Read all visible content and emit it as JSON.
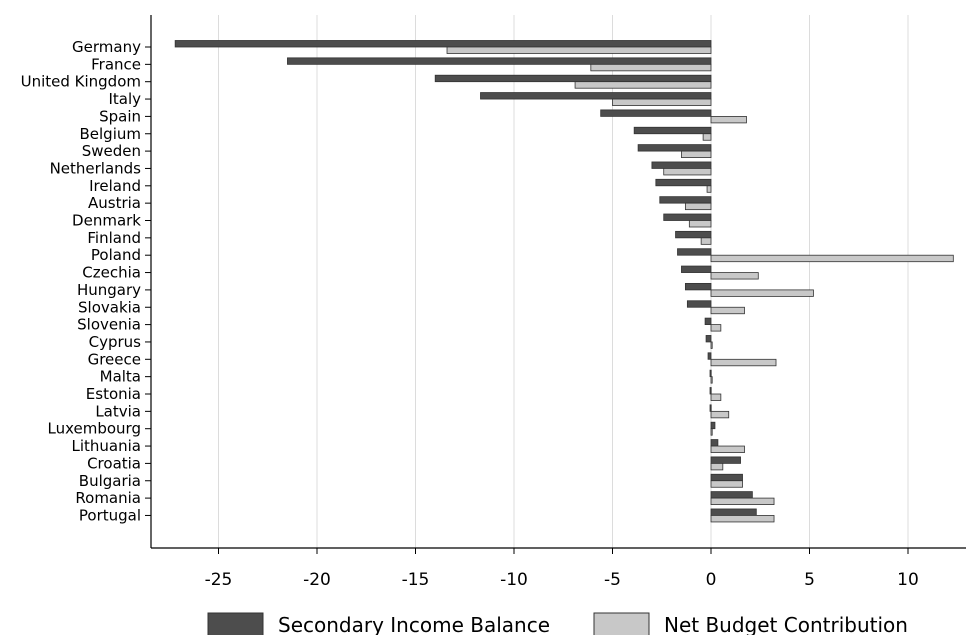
{
  "chart_data": {
    "type": "bar",
    "orientation": "horizontal",
    "categories": [
      "Germany",
      "France",
      "United Kingdom",
      "Italy",
      "Spain",
      "Belgium",
      "Sweden",
      "Netherlands",
      "Ireland",
      "Austria",
      "Denmark",
      "Finland",
      "Poland",
      "Czechia",
      "Hungary",
      "Slovakia",
      "Slovenia",
      "Cyprus",
      "Greece",
      "Malta",
      "Estonia",
      "Latvia",
      "Luxembourg",
      "Lithuania",
      "Croatia",
      "Bulgaria",
      "Romania",
      "Portugal"
    ],
    "series": [
      {
        "name": "Secondary Income Balance",
        "color": "#4d4d4d",
        "values": [
          -27.2,
          -21.5,
          -14.0,
          -11.7,
          -5.6,
          -3.9,
          -3.7,
          -3.0,
          -2.8,
          -2.6,
          -2.4,
          -1.8,
          -1.7,
          -1.5,
          -1.3,
          -1.2,
          -0.3,
          -0.25,
          -0.15,
          -0.05,
          -0.05,
          -0.05,
          0.2,
          0.35,
          1.5,
          1.6,
          2.1,
          2.3
        ]
      },
      {
        "name": "Net Budget Contribution",
        "color": "#c8c8c8",
        "values": [
          -13.4,
          -6.1,
          -6.9,
          -5.0,
          1.8,
          -0.4,
          -1.5,
          -2.4,
          -0.2,
          -1.3,
          -1.1,
          -0.5,
          12.3,
          2.4,
          5.2,
          1.7,
          0.5,
          0.05,
          3.3,
          0.05,
          0.5,
          0.9,
          0.05,
          1.7,
          0.6,
          1.6,
          3.2,
          3.2
        ]
      }
    ],
    "x_ticks": [
      -25,
      -20,
      -15,
      -10,
      -5,
      0,
      5,
      10
    ],
    "xlim": [
      -28.5,
      12.95
    ],
    "grid": "vertical",
    "legend": "bottom"
  }
}
